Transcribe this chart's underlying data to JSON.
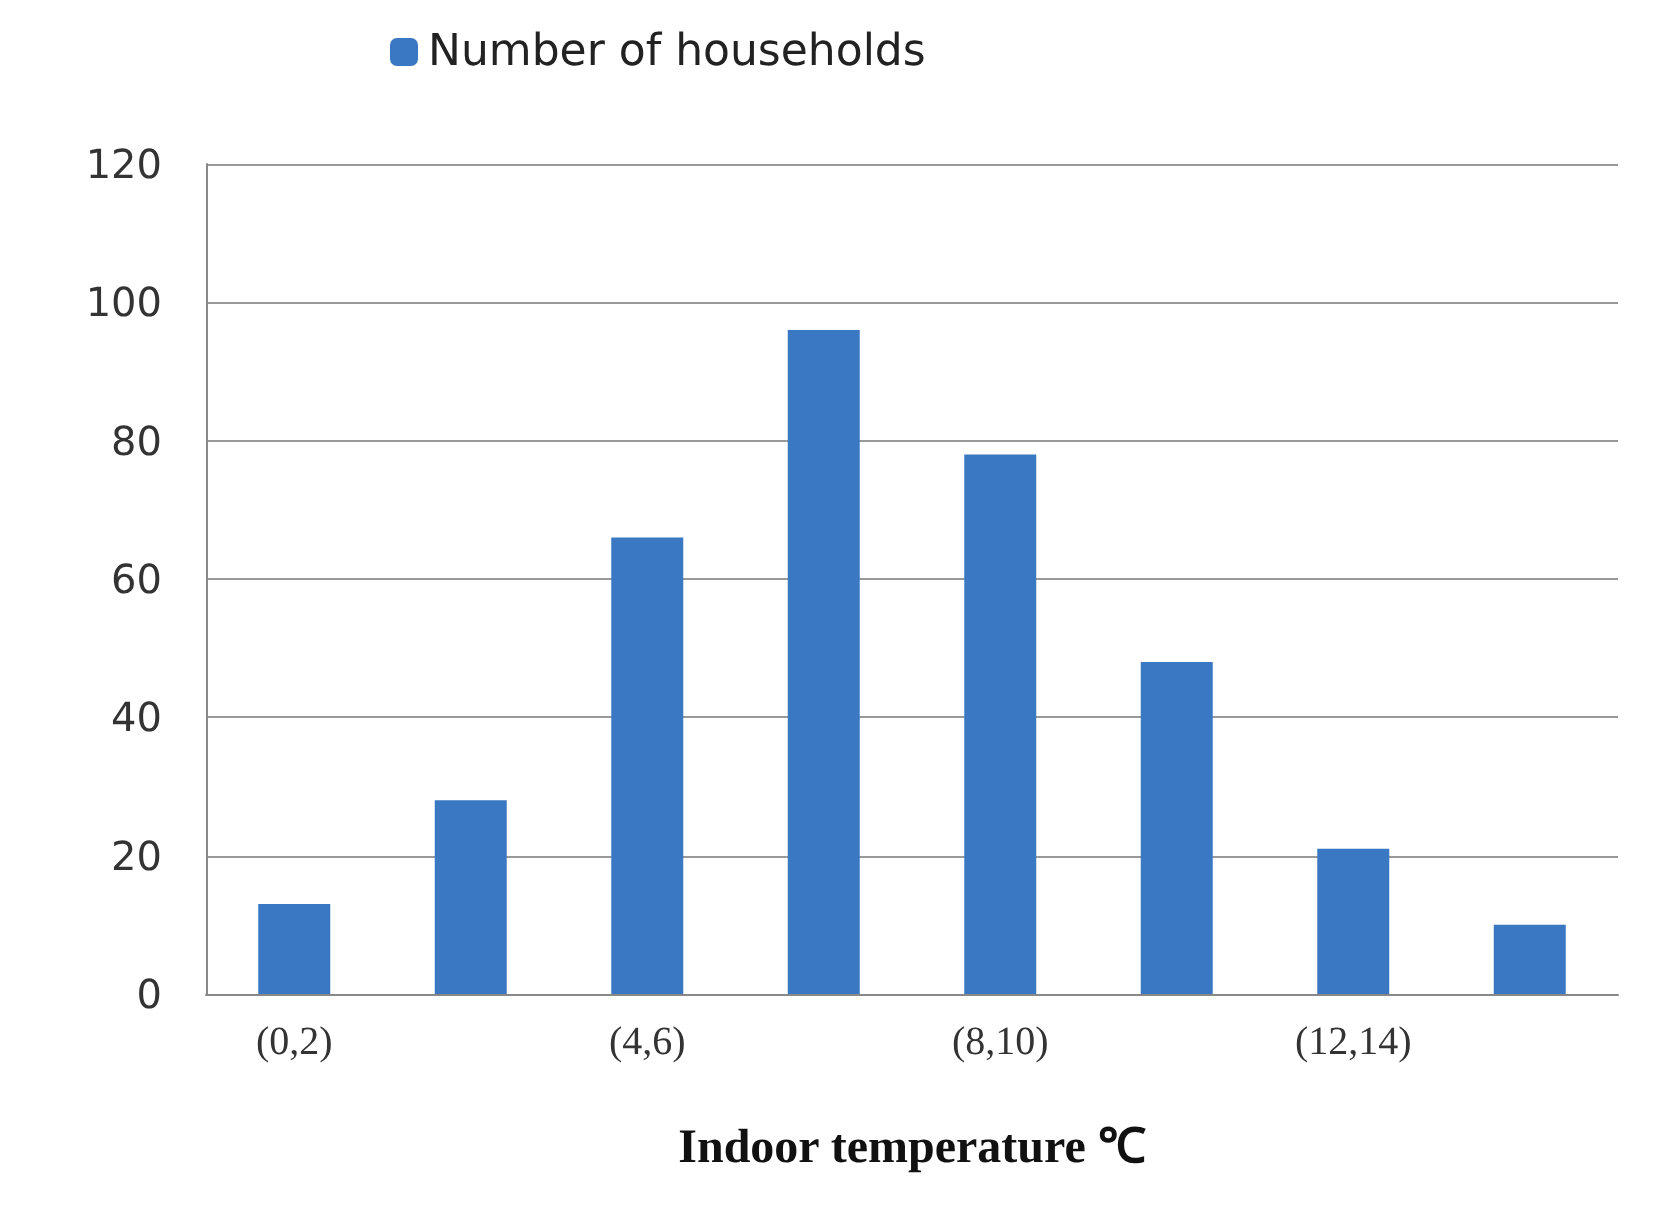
{
  "chart_data": {
    "type": "bar",
    "xlabel": "Indoor temperature ℃",
    "categories": [
      "(0,2)",
      null,
      "(4,6)",
      null,
      "(8,10)",
      null,
      "(12,14)",
      null
    ],
    "series": [
      {
        "name": "Number of households",
        "color": "#3a78c3",
        "values": [
          13,
          28,
          66,
          96,
          78,
          48,
          21,
          10
        ]
      }
    ],
    "ylim": [
      0,
      120
    ],
    "yticks": [
      0,
      20,
      40,
      60,
      80,
      100,
      120
    ],
    "grid": "y",
    "legend": "top left"
  }
}
